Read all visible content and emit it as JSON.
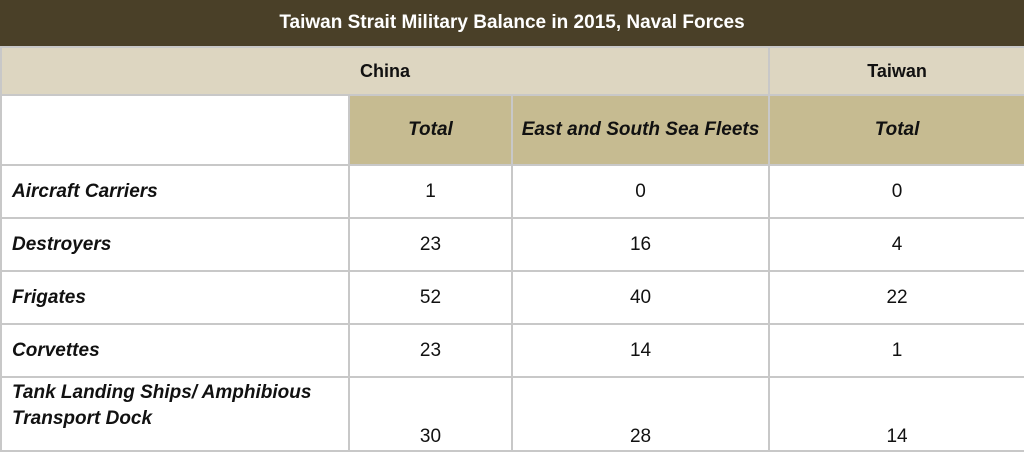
{
  "title": "Taiwan Strait Military Balance in 2015, Naval Forces",
  "header": {
    "china": "China",
    "taiwan": "Taiwan",
    "china_total": "Total",
    "china_fleets": "East and South Sea Fleets",
    "taiwan_total": "Total"
  },
  "rows": [
    {
      "label": "Aircraft Carriers",
      "china_total": "1",
      "china_fleets": "0",
      "taiwan_total": "0"
    },
    {
      "label": "Destroyers",
      "china_total": "23",
      "china_fleets": "16",
      "taiwan_total": "4"
    },
    {
      "label": "Frigates",
      "china_total": "52",
      "china_fleets": "40",
      "taiwan_total": "22"
    },
    {
      "label": "Corvettes",
      "china_total": "23",
      "china_fleets": "14",
      "taiwan_total": "1"
    },
    {
      "label": "Tank Landing Ships/ Amphibious Transport Dock",
      "china_total": "30",
      "china_fleets": "28",
      "taiwan_total": "14"
    }
  ]
}
